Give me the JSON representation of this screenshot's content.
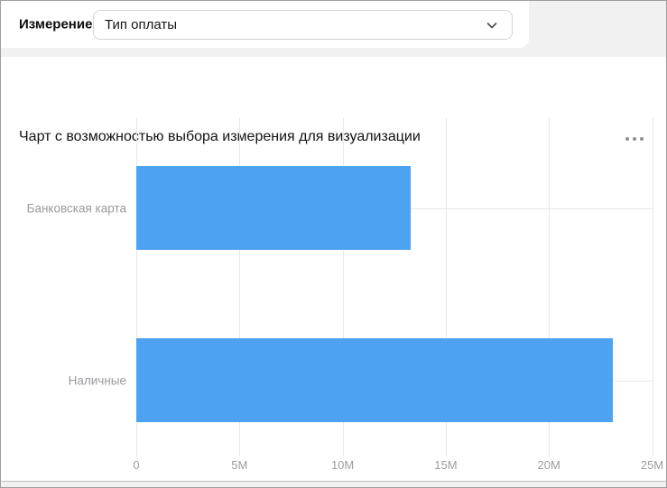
{
  "selector": {
    "label": "Измерение",
    "dropdown_value": "Тип оплаты",
    "chevron_icon": "chevron-down"
  },
  "card": {
    "title": "Чарт с возможностью выбора измерения для визуализации",
    "menu_icon": "ellipsis-menu"
  },
  "colors": {
    "bar": "#4da2f1",
    "gridline": "#e8e8e8",
    "axis_text": "#999b9e",
    "title_text": "#121212",
    "page_background": "#f1f1f2",
    "card_background": "#ffffff",
    "dropdown_border": "#d5d5d8"
  },
  "chart_data": {
    "type": "bar",
    "orientation": "horizontal",
    "title": "Чарт с возможностью выбора измерения для визуализации",
    "categories": [
      "Банковская карта",
      "Наличные"
    ],
    "values": [
      13300000,
      23100000
    ],
    "x_ticks": [
      "0",
      "5M",
      "10M",
      "15M",
      "20M",
      "25M"
    ],
    "x_tick_values": [
      0,
      5000000,
      10000000,
      15000000,
      20000000,
      25000000
    ],
    "xlim": [
      0,
      25000000
    ],
    "xlabel": "",
    "ylabel": "",
    "grid": true,
    "legend": false,
    "bar_color": "#4da2f1"
  }
}
